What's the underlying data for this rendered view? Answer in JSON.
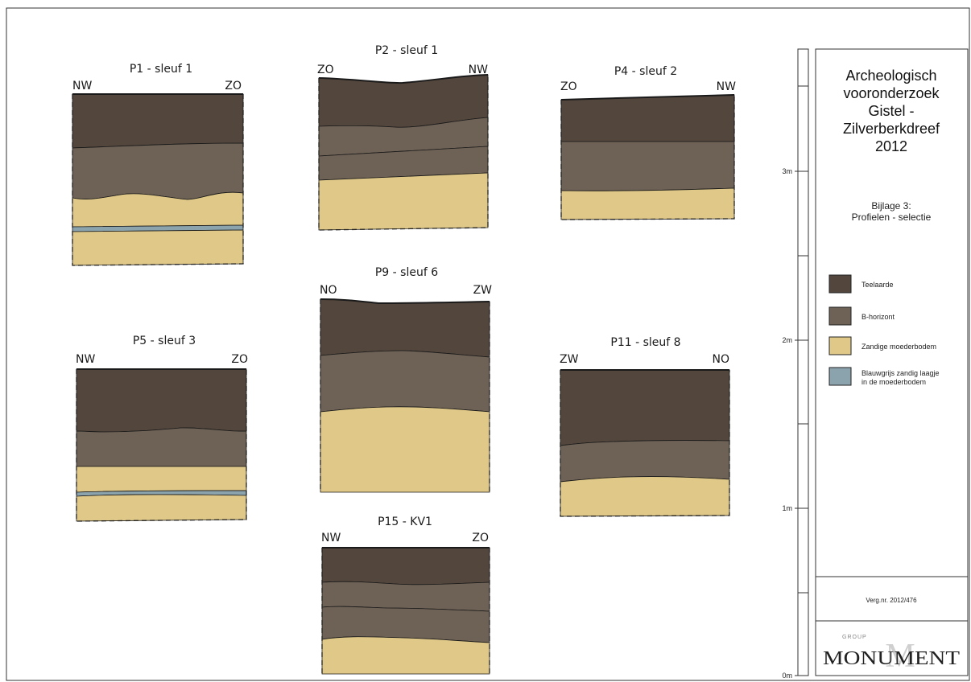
{
  "colors": {
    "teelaarde": "#53463d",
    "b_horizont": "#6e6155",
    "zandig": "#e0c988",
    "blauwgrijs": "#8aa3ad",
    "outline": "#1a1a1a"
  },
  "profiles": [
    {
      "id": "p1",
      "title": "P1 - sleuf 1",
      "left": "NW",
      "right": "ZO"
    },
    {
      "id": "p2",
      "title": "P2 - sleuf 1",
      "left": "ZO",
      "right": "NW"
    },
    {
      "id": "p4",
      "title": "P4 - sleuf 2",
      "left": "ZO",
      "right": "NW"
    },
    {
      "id": "p5",
      "title": "P5 - sleuf 3",
      "left": "NW",
      "right": "ZO"
    },
    {
      "id": "p9",
      "title": "P9 - sleuf 6",
      "left": "NO",
      "right": "ZW"
    },
    {
      "id": "p11",
      "title": "P11 - sleuf 8",
      "left": "ZW",
      "right": "NO"
    },
    {
      "id": "p15",
      "title": "P15 - KV1",
      "left": "NW",
      "right": "ZO"
    }
  ],
  "scale": {
    "labels": [
      "3m",
      "2m",
      "1m",
      "0m"
    ]
  },
  "panel": {
    "title_lines": [
      "Archeologisch",
      "vooronderzoek",
      "Gistel -",
      "Zilverberkdreef",
      "2012"
    ],
    "subtitle_lines": [
      "Bijlage 3:",
      "Profielen - selectie"
    ],
    "legend": [
      {
        "color_key": "teelaarde",
        "lines": [
          "Teelaarde"
        ]
      },
      {
        "color_key": "b_horizont",
        "lines": [
          "B-horizont"
        ]
      },
      {
        "color_key": "zandig",
        "lines": [
          "Zandige moederbodem"
        ]
      },
      {
        "color_key": "blauwgrijs",
        "lines": [
          "Blauwgrijs zandig laagje",
          "in de moederbodem"
        ]
      }
    ],
    "verg": "Verg.nr. 2012/476",
    "logo": {
      "small": "GROUP",
      "big": "MONUMENT",
      "mark": "M"
    }
  }
}
